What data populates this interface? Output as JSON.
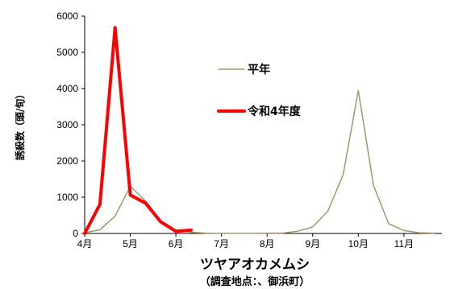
{
  "chart_data": {
    "type": "line",
    "title": "ツヤアオカメムシ",
    "subtitle": "（調査地点：、御浜町）",
    "ylabel": "誘殺数（頭/旬）",
    "xlabel": "",
    "ylim": [
      0,
      6000
    ],
    "yticks": [
      0,
      1000,
      2000,
      3000,
      4000,
      5000,
      6000
    ],
    "xticks": [
      {
        "label": "4月",
        "pos": 0
      },
      {
        "label": "5月",
        "pos": 3
      },
      {
        "label": "6月",
        "pos": 6
      },
      {
        "label": "7月",
        "pos": 9
      },
      {
        "label": "8月",
        "pos": 12
      },
      {
        "label": "9月",
        "pos": 15
      },
      {
        "label": "10月",
        "pos": 18
      },
      {
        "label": "11月",
        "pos": 21
      }
    ],
    "x_range": [
      0,
      23.5
    ],
    "legend_position": "center-right",
    "series": [
      {
        "name": "平年",
        "color": "#a09870",
        "x": [
          0,
          1,
          2,
          3,
          4,
          5,
          6,
          7,
          8,
          9,
          10,
          11,
          12,
          13,
          14,
          15,
          16,
          17,
          18,
          19,
          20,
          21,
          22,
          23
        ],
        "values": [
          20,
          100,
          480,
          1300,
          900,
          350,
          90,
          30,
          10,
          5,
          5,
          5,
          10,
          10,
          60,
          180,
          620,
          1620,
          3950,
          1320,
          270,
          80,
          20,
          10
        ]
      },
      {
        "name": "令和4年度",
        "color": "#ff0000",
        "x": [
          0,
          1,
          2,
          3,
          4,
          5,
          6,
          7
        ],
        "values": [
          0,
          800,
          5680,
          1060,
          840,
          320,
          60,
          90
        ]
      }
    ]
  }
}
